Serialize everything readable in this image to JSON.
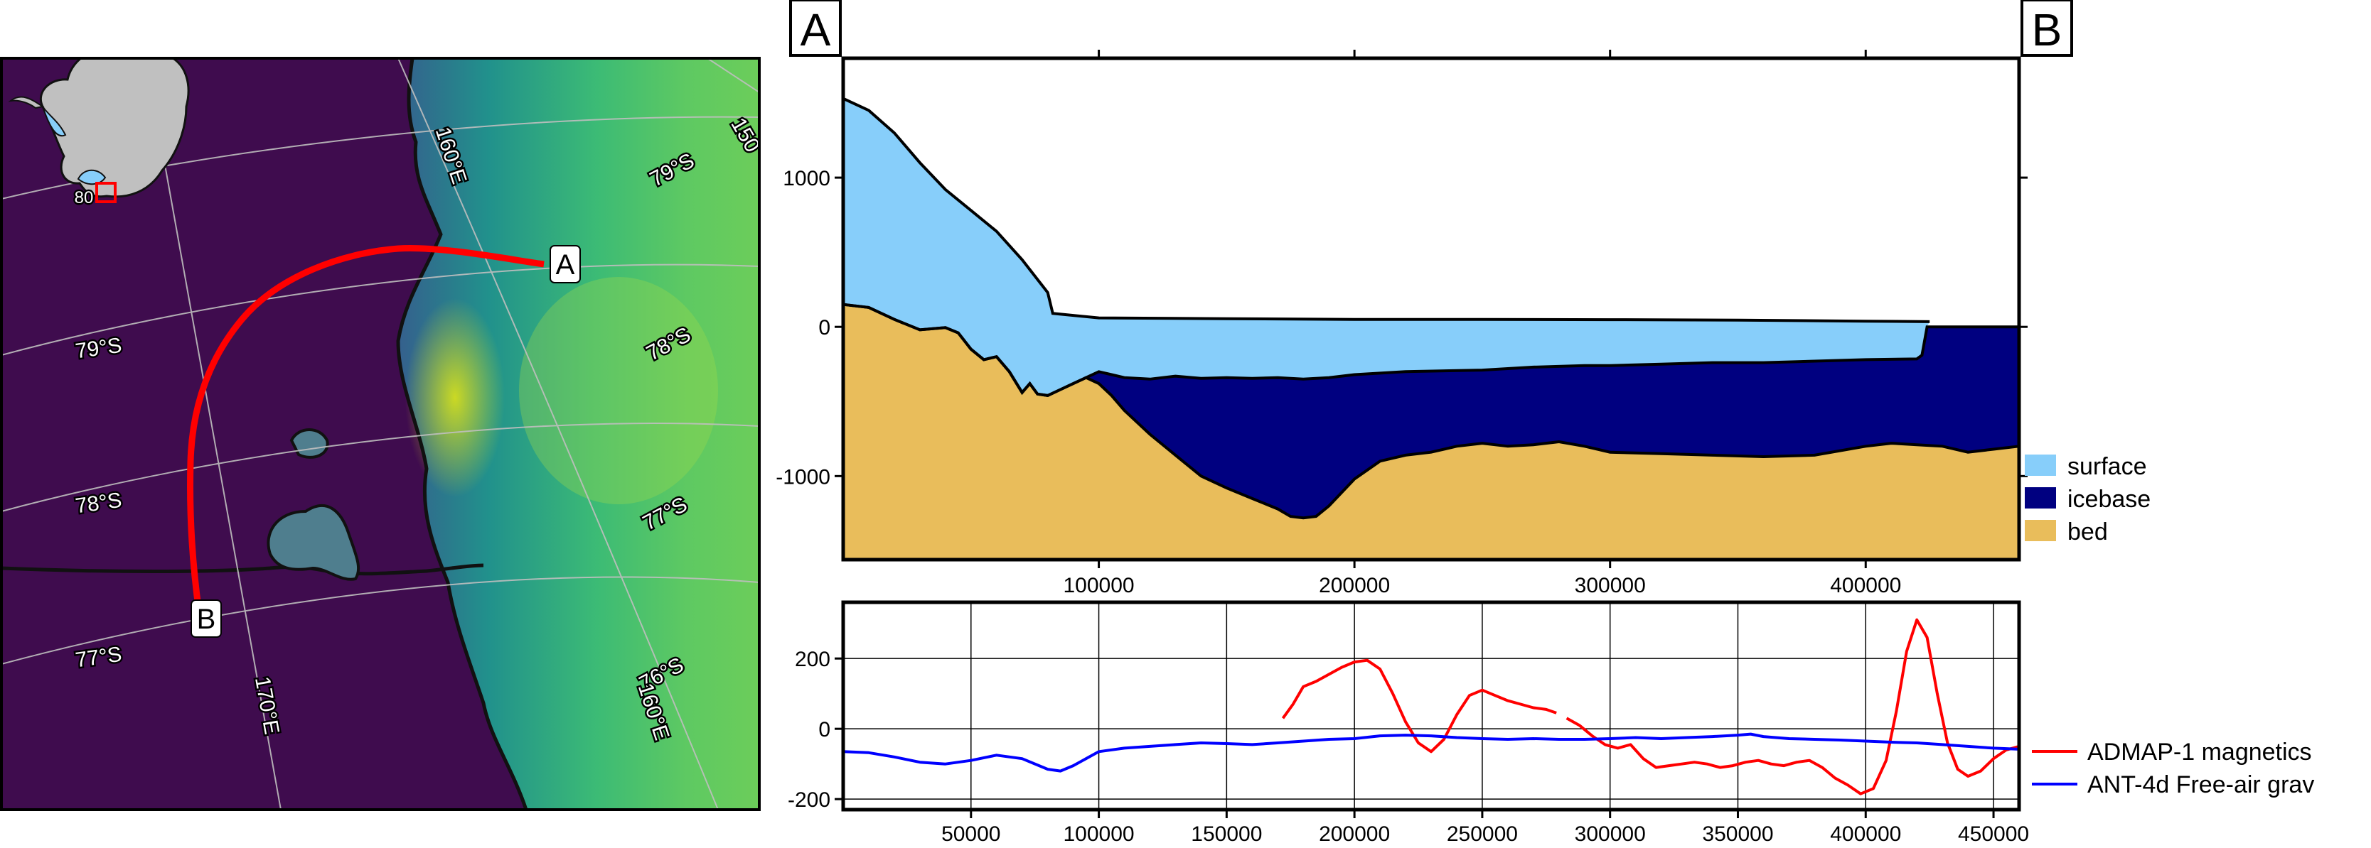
{
  "colors": {
    "surface": "#87cefa",
    "icebase": "#000080",
    "bed": "#e9bd5b",
    "magnetics": "#ff0000",
    "gravity": "#0000ff",
    "ocean": "#3f0c4e",
    "route": "#ff0000"
  },
  "map": {
    "type": "map",
    "lat_labels": [
      "79°S",
      "78°S",
      "77°S",
      "79°S",
      "78°S",
      "77°S",
      "76°S"
    ],
    "lon_labels": [
      "160°E",
      "150",
      "170°E",
      "160°E"
    ],
    "inset_label": "80",
    "point_a": "A",
    "point_b": "B"
  },
  "chart_data": [
    {
      "type": "area",
      "title": "",
      "x_unit": "m along profile",
      "xlim": [
        0,
        460000
      ],
      "ylim": [
        -1560,
        1800
      ],
      "x_ticks": [
        "100000",
        "200000",
        "300000",
        "400000"
      ],
      "y_ticks": [
        "1000",
        "0",
        "-1000"
      ],
      "start_label": "A",
      "end_label": "B",
      "legend_position": "right",
      "series": [
        {
          "name": "surface",
          "x": [
            0,
            10000,
            20000,
            30000,
            40000,
            50000,
            60000,
            70000,
            80000,
            82000,
            100000,
            150000,
            200000,
            250000,
            300000,
            350000,
            400000,
            425000
          ],
          "y": [
            1530,
            1450,
            1300,
            1100,
            920,
            780,
            640,
            450,
            230,
            90,
            60,
            55,
            50,
            50,
            48,
            45,
            38,
            35
          ]
        },
        {
          "name": "icebase",
          "x": [
            0,
            10000,
            20000,
            30000,
            40000,
            45000,
            50000,
            55000,
            60000,
            65000,
            70000,
            73000,
            76000,
            80000,
            85000,
            90000,
            95000,
            100000,
            105000,
            110000,
            120000,
            130000,
            140000,
            150000,
            160000,
            170000,
            180000,
            190000,
            200000,
            220000,
            250000,
            270000,
            290000,
            300000,
            320000,
            340000,
            360000,
            380000,
            400000,
            420000,
            422000,
            424000,
            440000,
            460000
          ],
          "y": [
            150,
            130,
            50,
            -20,
            -5,
            -40,
            -150,
            -220,
            -200,
            -300,
            -440,
            -380,
            -450,
            -460,
            -420,
            -380,
            -340,
            -300,
            -320,
            -340,
            -350,
            -330,
            -345,
            -340,
            -345,
            -340,
            -350,
            -340,
            -320,
            -300,
            -290,
            -270,
            -260,
            -260,
            -250,
            -240,
            -240,
            -230,
            -220,
            -215,
            -190,
            0,
            0,
            0
          ]
        },
        {
          "name": "bed",
          "x": [
            0,
            10000,
            20000,
            30000,
            40000,
            45000,
            50000,
            55000,
            60000,
            65000,
            70000,
            73000,
            76000,
            80000,
            85000,
            90000,
            95000,
            100000,
            105000,
            110000,
            120000,
            130000,
            140000,
            150000,
            160000,
            170000,
            175000,
            180000,
            185000,
            190000,
            200000,
            210000,
            220000,
            230000,
            240000,
            250000,
            260000,
            270000,
            280000,
            290000,
            300000,
            320000,
            340000,
            360000,
            380000,
            400000,
            410000,
            420000,
            430000,
            440000,
            450000,
            460000
          ],
          "y": [
            150,
            130,
            50,
            -20,
            -5,
            -40,
            -150,
            -220,
            -200,
            -300,
            -440,
            -380,
            -450,
            -460,
            -420,
            -380,
            -340,
            -380,
            -460,
            -560,
            -720,
            -860,
            -1000,
            -1080,
            -1150,
            -1220,
            -1270,
            -1280,
            -1270,
            -1200,
            -1020,
            -900,
            -860,
            -840,
            -800,
            -780,
            -800,
            -790,
            -770,
            -800,
            -840,
            -850,
            -860,
            -870,
            -860,
            -800,
            -780,
            -790,
            -800,
            -840,
            -820,
            -800
          ]
        }
      ]
    },
    {
      "type": "line",
      "title": "",
      "xlim": [
        0,
        460000
      ],
      "ylim": [
        -230,
        360
      ],
      "x_ticks": [
        "50000",
        "100000",
        "150000",
        "200000",
        "250000",
        "300000",
        "350000",
        "400000",
        "450000"
      ],
      "y_ticks": [
        "200",
        "0",
        "-200"
      ],
      "grid": true,
      "legend_position": "right",
      "series": [
        {
          "name": "ADMAP-1 magnetics",
          "segments": [
            {
              "x": [
                172000,
                176000,
                180000,
                185000,
                190000,
                195000,
                200000,
                205000,
                210000,
                215000,
                220000,
                225000,
                230000,
                235000,
                240000,
                245000,
                250000,
                255000,
                260000,
                265000,
                270000,
                275000,
                279000
              ],
              "y": [
                30,
                70,
                120,
                135,
                155,
                175,
                190,
                195,
                170,
                100,
                20,
                -40,
                -65,
                -30,
                40,
                95,
                110,
                95,
                80,
                70,
                60,
                55,
                45
              ]
            },
            {
              "x": [
                283000,
                288000,
                293000,
                298000,
                303000,
                308000,
                313000,
                318000,
                323000,
                328000,
                333000,
                338000,
                343000,
                348000,
                353000,
                358000,
                363000,
                368000,
                373000,
                378000,
                383000,
                388000,
                393000,
                398000,
                403000,
                408000,
                412000,
                416000,
                420000,
                424000,
                428000,
                432000,
                436000,
                440000,
                445000,
                450000,
                455000,
                460000
              ],
              "y": [
                30,
                10,
                -20,
                -45,
                -55,
                -45,
                -85,
                -110,
                -105,
                -100,
                -95,
                -100,
                -110,
                -105,
                -95,
                -90,
                -100,
                -105,
                -95,
                -90,
                -110,
                -140,
                -160,
                -185,
                -170,
                -90,
                50,
                220,
                310,
                260,
                100,
                -40,
                -115,
                -135,
                -120,
                -85,
                -60,
                -50
              ]
            }
          ]
        },
        {
          "name": "ANT-4d Free-air grav",
          "segments": [
            {
              "x": [
                0,
                10000,
                20000,
                30000,
                40000,
                50000,
                60000,
                70000,
                80000,
                85000,
                90000,
                100000,
                110000,
                120000,
                130000,
                140000,
                150000,
                160000,
                170000,
                180000,
                190000,
                200000,
                210000,
                220000,
                230000,
                240000,
                250000,
                260000,
                270000,
                280000,
                290000,
                300000,
                310000,
                320000,
                330000,
                340000,
                350000,
                355000,
                360000,
                370000,
                380000,
                390000,
                400000,
                410000,
                420000,
                430000,
                440000,
                450000,
                460000
              ],
              "y": [
                -65,
                -68,
                -80,
                -95,
                -100,
                -90,
                -75,
                -85,
                -115,
                -120,
                -105,
                -65,
                -55,
                -50,
                -45,
                -40,
                -42,
                -45,
                -40,
                -35,
                -30,
                -28,
                -20,
                -18,
                -20,
                -25,
                -28,
                -30,
                -28,
                -30,
                -30,
                -28,
                -25,
                -28,
                -25,
                -22,
                -18,
                -15,
                -22,
                -28,
                -30,
                -32,
                -35,
                -38,
                -40,
                -45,
                -50,
                -55,
                -58
              ]
            }
          ]
        }
      ]
    }
  ]
}
